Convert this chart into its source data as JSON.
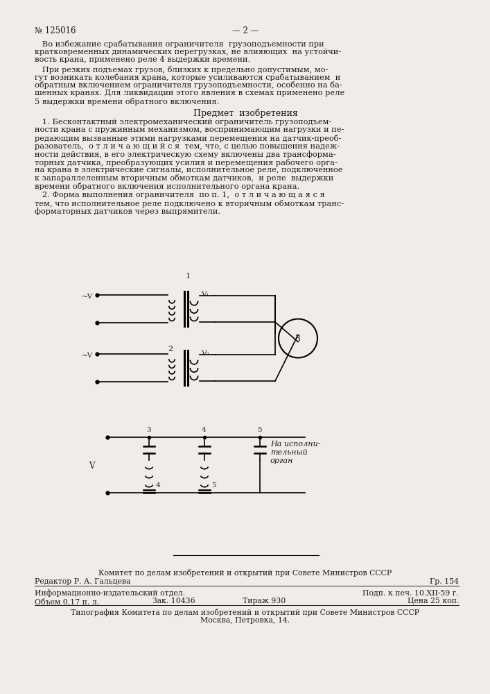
{
  "bg_color": "#f0ede8",
  "text_color": "#1a1a1a",
  "header_num": "№ 125016",
  "header_center": "— 2 —",
  "para1_line1": "   Во избежание срабатывания ограничителя  грузоподъемности при",
  "para1_line2": "кратковременных динамических перегрузках, не влияющих  на устойчи-",
  "para1_line3": "вость крана, применено реле 4 выдержки времени.",
  "para2_line1": "   При резких подъемах грузов, близких к предельно допустимым, мо-",
  "para2_line2": "гут возникать колебания крана, которые усиливаются срабатыванием  и",
  "para2_line3": "обратным включением ограничителя грузоподъемности, особенно на ба-",
  "para2_line4": "шенных кранах. Для ликвидации этого явления в схемах применено реле",
  "para2_line5": "5 выдержки времени обратного включения.",
  "section_title": "Предмет  изобретения",
  "c1l1": "   1. Бесконтактный электромеханический ограничитель грузоподъем-",
  "c1l2": "ности крана с пружинным механизмом, воспринимающим нагрузки и пе-",
  "c1l3": "редающим вызванные этими нагрузками перемещения на датчик-преоб-",
  "c1l4": "разователь,  о т л и ч а ю щ и й с я  тем, что, с целью повышения надеж-",
  "c1l5": "ности действия, в его электрическую схему включены два трансформа-",
  "c1l6": "торных датчика, преобразующих усилия и перемещения рабочего орга-",
  "c1l7": "на крана в электрические сигналы, исполнительное реле, подключенное",
  "c1l8": "к запараллеленным вторичным обмоткам датчиков,  и реле  выдержки",
  "c1l9": "времени обратного включения исполнительного органа крана.",
  "c2l1": "   2. Форма выполнения ограничителя  по п. 1,  о т л и ч а ю щ а я с я",
  "c2l2": "тем, что исполнительное реле подключено к вторичным обмоткам транс-",
  "c2l3": "форматорных датчиков через выпрямители.",
  "footer_line1": "Комитет по делам изобретений и открытий при Совете Министров СССР",
  "footer_ed": "Редактор Р. А. Гальцева",
  "footer_gr": "Гр. 154",
  "footer_info": "Информационно-издательский отдел.",
  "footer_podp": "Подп. к печ. 10.XII-59 г.",
  "footer_obj": "Объем 0,17 п. л.",
  "footer_zak": "Зак. 10436",
  "footer_tir": "Тираж 930",
  "footer_cena": "Цена 25 коп.",
  "footer_tip1": "Типография Комитета по делам изобретений и открытий при Совете Министров СССР",
  "footer_tip2": "Москва, Петровка, 14."
}
